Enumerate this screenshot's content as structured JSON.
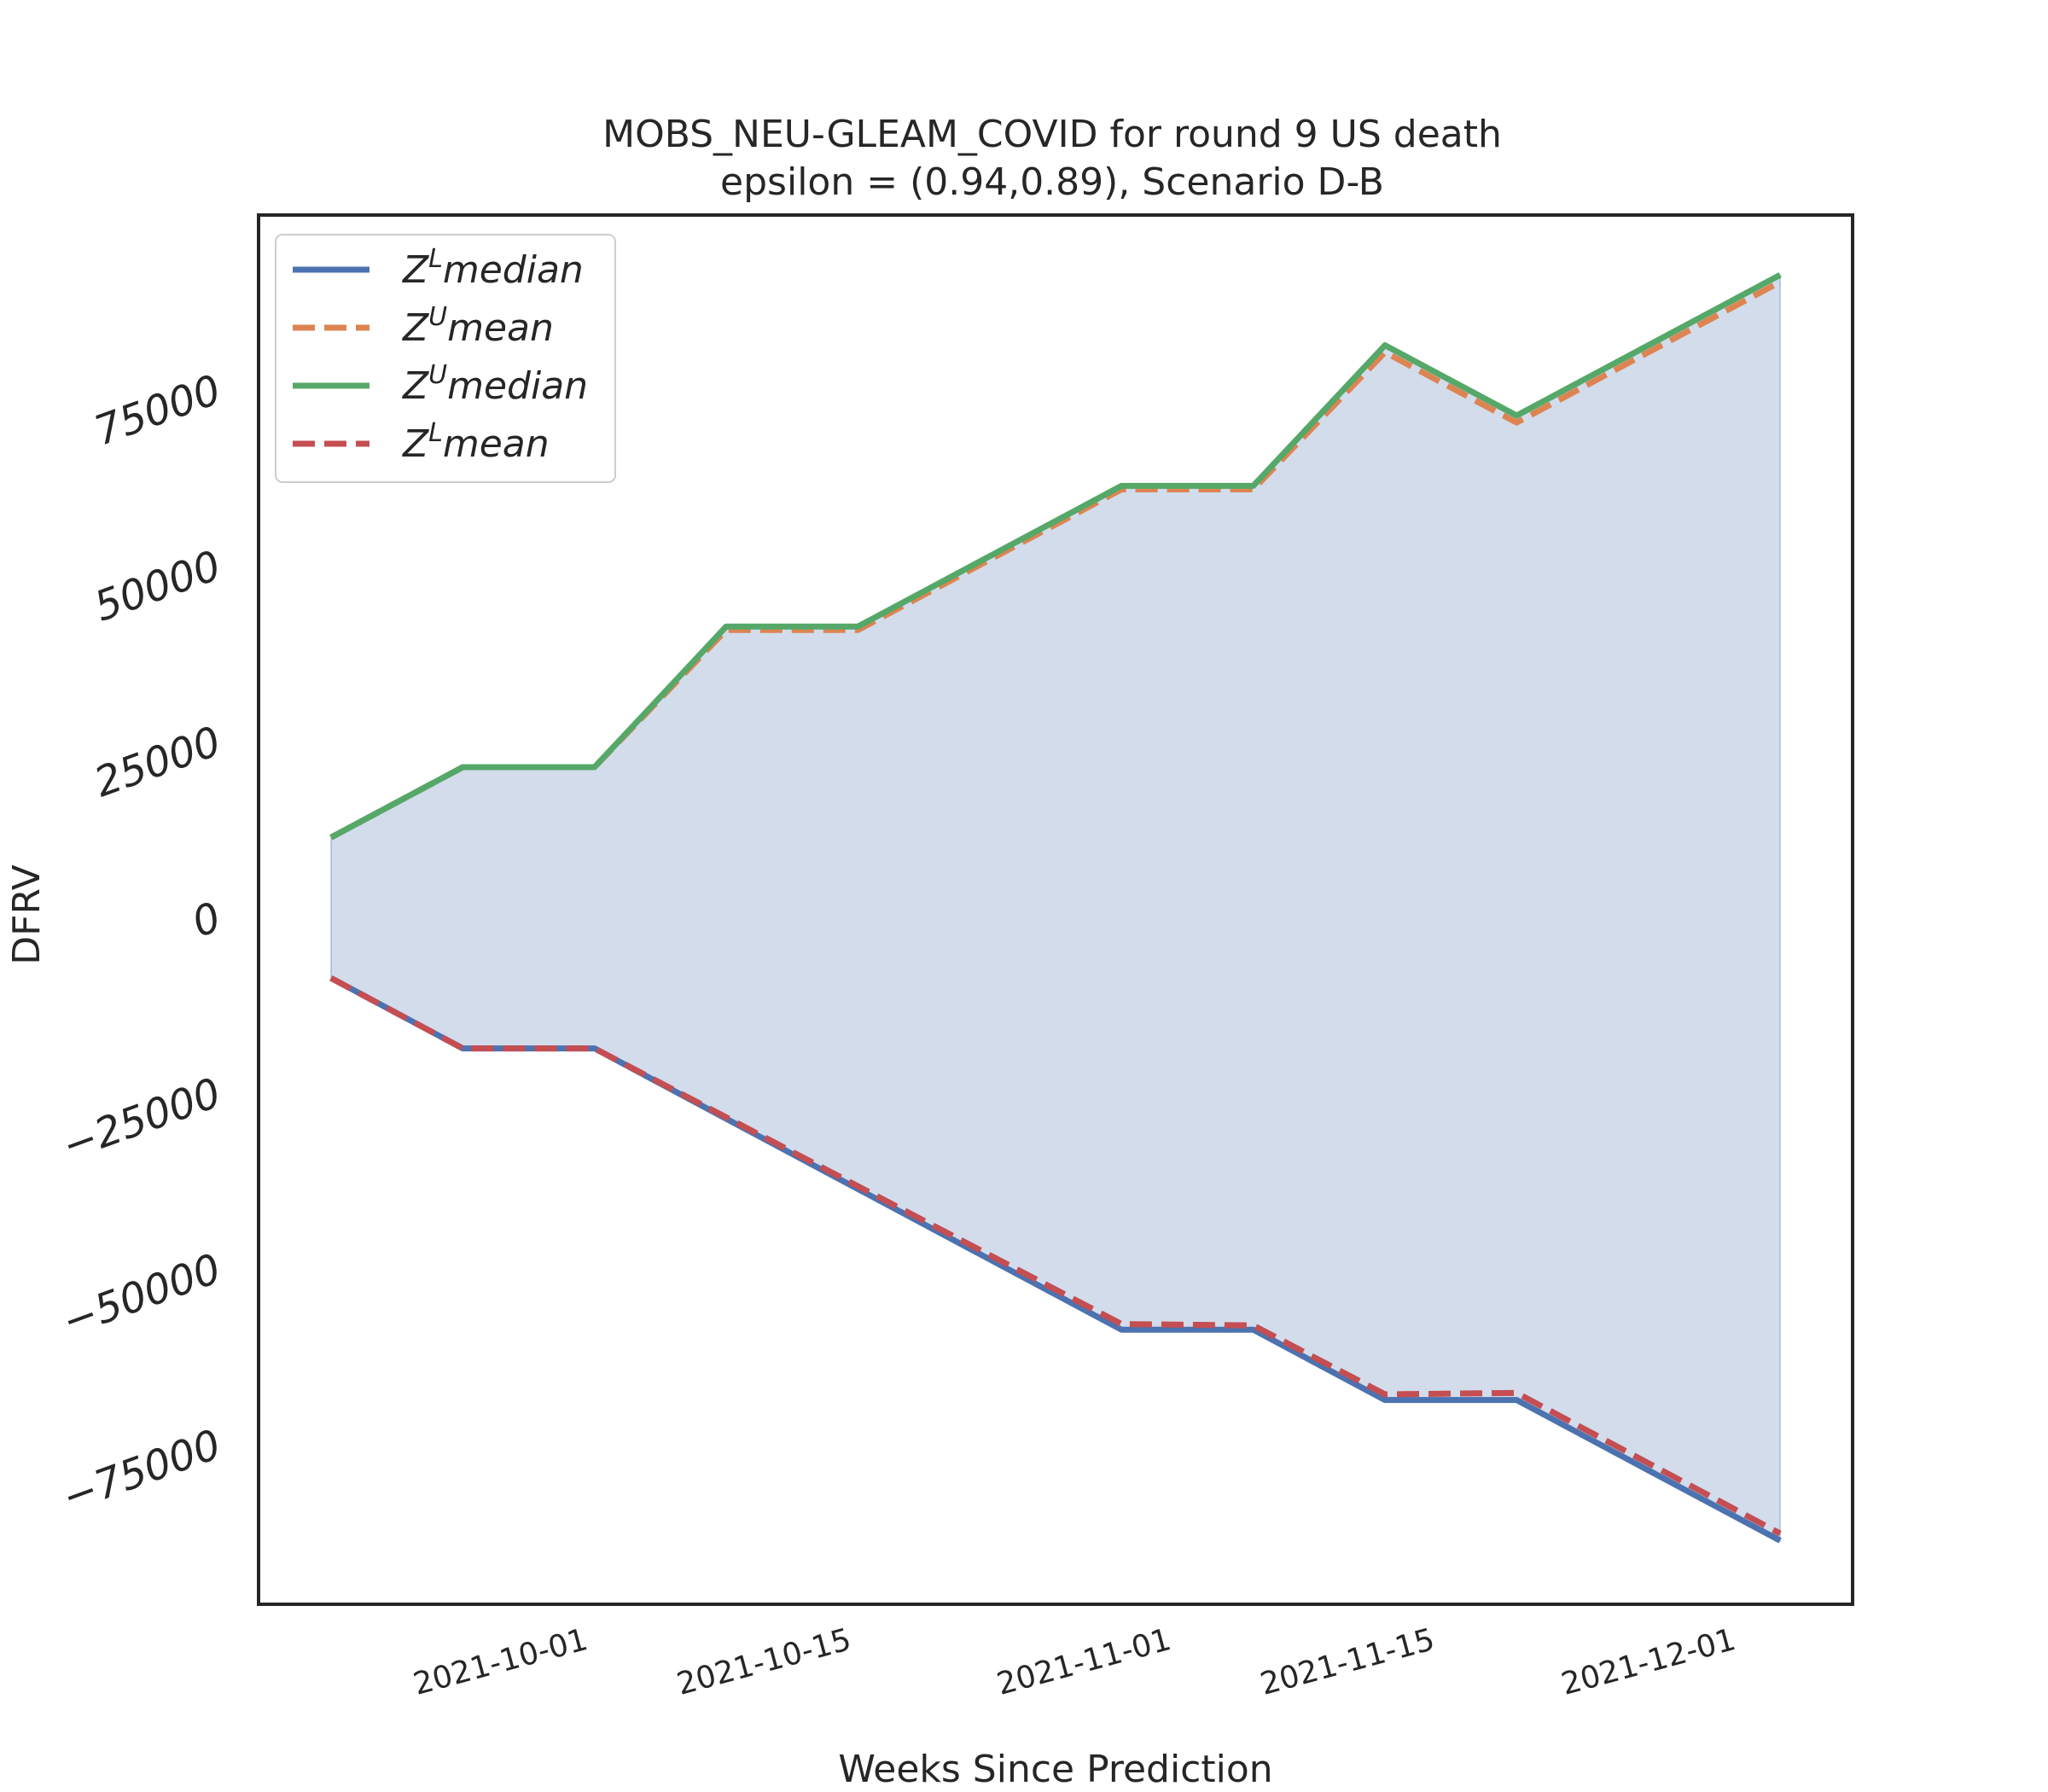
{
  "chart_data": {
    "type": "line",
    "title": "MOBS_NEU-GLEAM_COVID for round 9 US  death",
    "subtitle": "epsilon = (0.94,0.89), Scenario D-B",
    "xlabel": "Weeks Since Prediction",
    "ylabel": "DFRV",
    "x_dates": [
      "2021-09-18",
      "2021-09-25",
      "2021-10-02",
      "2021-10-09",
      "2021-10-16",
      "2021-10-23",
      "2021-10-30",
      "2021-11-06",
      "2021-11-13",
      "2021-11-20",
      "2021-11-27",
      "2021-12-04"
    ],
    "x_ticks": [
      "2021-10-01",
      "2021-10-15",
      "2021-11-01",
      "2021-11-15",
      "2021-12-01"
    ],
    "y_ticks": [
      -75000,
      -50000,
      -25000,
      0,
      25000,
      50000,
      75000
    ],
    "y_tick_labels": [
      "−75000",
      "−50000",
      "−25000",
      "0",
      "25000",
      "50000",
      "75000"
    ],
    "ylim": [
      -100000,
      100000
    ],
    "grid": false,
    "legend_position": "top-left",
    "series": [
      {
        "name": "Z^L median",
        "values": [
          -9000,
          -19000,
          -19000,
          -29000,
          -39000,
          -49000,
          -59000,
          -59000,
          -69000,
          -69000,
          -79000,
          -89000
        ],
        "color": "#4c72b0",
        "style": "solid"
      },
      {
        "name": "Z^U mean",
        "values": [
          11000,
          21000,
          21000,
          40500,
          40500,
          50500,
          60500,
          60500,
          80000,
          70000,
          80000,
          90000
        ],
        "color": "#dd8452",
        "style": "dashed"
      },
      {
        "name": "Z^U median",
        "values": [
          11000,
          21000,
          21000,
          41000,
          41000,
          51000,
          61000,
          61000,
          81000,
          71000,
          81000,
          91000
        ],
        "color": "#55a868",
        "style": "solid"
      },
      {
        "name": "Z^L mean",
        "values": [
          -9000,
          -19000,
          -19000,
          -28800,
          -38600,
          -48400,
          -58200,
          -58400,
          -68200,
          -68000,
          -78000,
          -88000
        ],
        "color": "#c44e52",
        "style": "dashed"
      }
    ],
    "fill_color": "#4c72b0",
    "legend": [
      {
        "base": "Z",
        "sup": "L",
        "rest": "median",
        "color": "#4c72b0",
        "style": "solid"
      },
      {
        "base": "Z",
        "sup": "U",
        "rest": "mean",
        "color": "#dd8452",
        "style": "dashed"
      },
      {
        "base": "Z",
        "sup": "U",
        "rest": "median",
        "color": "#55a868",
        "style": "solid"
      },
      {
        "base": "Z",
        "sup": "L",
        "rest": "mean",
        "color": "#c44e52",
        "style": "dashed"
      }
    ]
  }
}
